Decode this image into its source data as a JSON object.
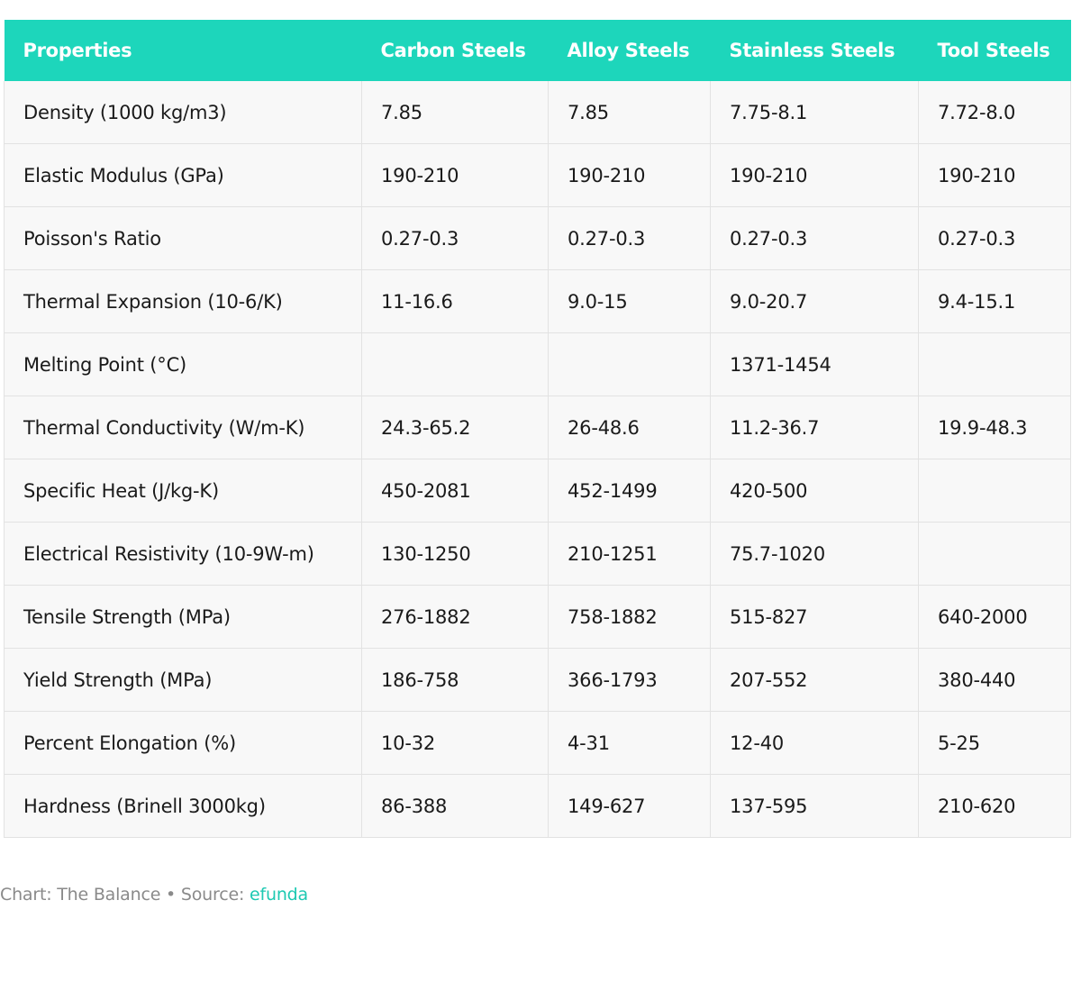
{
  "chart_data": {
    "type": "table",
    "columns": [
      "Properties",
      "Carbon Steels",
      "Alloy Steels",
      "Stainless Steels",
      "Tool Steels"
    ],
    "rows": [
      [
        "Density (1000 kg/m3)",
        "7.85",
        "7.85",
        "7.75-8.1",
        "7.72-8.0"
      ],
      [
        "Elastic Modulus (GPa)",
        "190-210",
        "190-210",
        "190-210",
        "190-210"
      ],
      [
        "Poisson's Ratio",
        "0.27-0.3",
        "0.27-0.3",
        "0.27-0.3",
        "0.27-0.3"
      ],
      [
        "Thermal Expansion (10-6/K)",
        "11-16.6",
        "9.0-15",
        "9.0-20.7",
        "9.4-15.1"
      ],
      [
        "Melting Point (°C)",
        "",
        "",
        "1371-1454",
        ""
      ],
      [
        "Thermal Conductivity (W/m-K)",
        "24.3-65.2",
        "26-48.6",
        "11.2-36.7",
        "19.9-48.3"
      ],
      [
        "Specific Heat (J/kg-K)",
        "450-2081",
        "452-1499",
        "420-500",
        ""
      ],
      [
        "Electrical Resistivity (10-9W-m)",
        "130-1250",
        "210-1251",
        "75.7-1020",
        ""
      ],
      [
        "Tensile Strength (MPa)",
        "276-1882",
        "758-1882",
        "515-827",
        "640-2000"
      ],
      [
        "Yield Strength (MPa)",
        "186-758",
        "366-1793",
        "207-552",
        "380-440"
      ],
      [
        "Percent Elongation (%)",
        "10-32",
        "4-31",
        "12-40",
        "5-25"
      ],
      [
        "Hardness (Brinell 3000kg)",
        "86-388",
        "149-627",
        "137-595",
        "210-620"
      ]
    ]
  },
  "footer": {
    "credit": "Chart: The Balance • Source: ",
    "source_link": "efunda"
  },
  "colors": {
    "header_bg": "#1dd6bb",
    "header_text": "#ffffff",
    "row_bg": "#f8f8f8",
    "link": "#1dc9b2"
  }
}
